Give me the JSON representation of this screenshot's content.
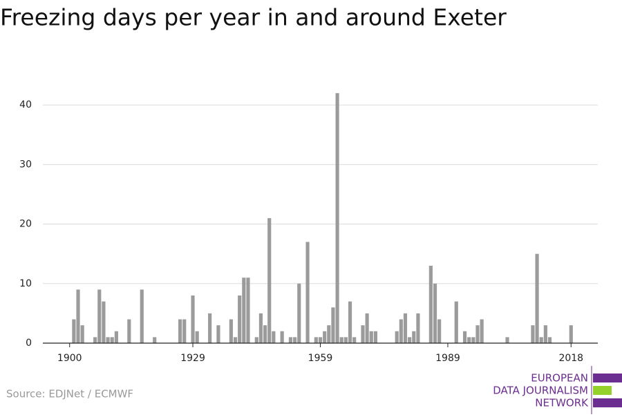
{
  "chart_data": {
    "type": "bar",
    "title": "Freezing days per year in and around Exeter",
    "source": "Source: EDJNet / ECMWF",
    "logo": [
      "EUROPEAN",
      "DATA JOURNALISM",
      "NETWORK"
    ],
    "color": "#9b9b9b",
    "x": [
      1900,
      1901,
      1902,
      1903,
      1904,
      1905,
      1906,
      1907,
      1908,
      1909,
      1910,
      1911,
      1912,
      1913,
      1914,
      1915,
      1916,
      1917,
      1918,
      1919,
      1920,
      1921,
      1922,
      1923,
      1924,
      1925,
      1926,
      1927,
      1928,
      1929,
      1930,
      1931,
      1932,
      1933,
      1934,
      1935,
      1936,
      1937,
      1938,
      1939,
      1940,
      1941,
      1942,
      1943,
      1944,
      1945,
      1946,
      1947,
      1948,
      1949,
      1950,
      1951,
      1952,
      1953,
      1954,
      1955,
      1956,
      1957,
      1958,
      1959,
      1960,
      1961,
      1962,
      1963,
      1964,
      1965,
      1966,
      1967,
      1968,
      1969,
      1970,
      1971,
      1972,
      1973,
      1974,
      1975,
      1976,
      1977,
      1978,
      1979,
      1980,
      1981,
      1982,
      1983,
      1984,
      1985,
      1986,
      1987,
      1988,
      1989,
      1990,
      1991,
      1992,
      1993,
      1994,
      1995,
      1996,
      1997,
      1998,
      1999,
      2000,
      2001,
      2002,
      2003,
      2004,
      2005,
      2006,
      2007,
      2008,
      2009,
      2010,
      2011,
      2012,
      2013,
      2014,
      2015,
      2016,
      2017,
      2018
    ],
    "values": [
      0,
      4,
      9,
      3,
      0,
      0,
      1,
      9,
      7,
      1,
      1,
      2,
      0,
      0,
      4,
      0,
      0,
      9,
      0,
      0,
      1,
      0,
      0,
      0,
      0,
      0,
      4,
      4,
      0,
      8,
      2,
      0,
      0,
      5,
      0,
      3,
      0,
      0,
      4,
      1,
      8,
      11,
      11,
      0,
      1,
      5,
      3,
      21,
      2,
      0,
      2,
      0,
      1,
      1,
      10,
      0,
      17,
      0,
      1,
      1,
      2,
      3,
      6,
      42,
      1,
      1,
      7,
      1,
      0,
      3,
      5,
      2,
      2,
      0,
      0,
      0,
      0,
      2,
      4,
      5,
      1,
      2,
      5,
      0,
      0,
      13,
      10,
      4,
      0,
      0,
      0,
      7,
      0,
      2,
      1,
      1,
      3,
      4,
      0,
      0,
      0,
      0,
      0,
      1,
      0,
      0,
      0,
      0,
      0,
      3,
      15,
      1,
      3,
      1,
      0,
      0,
      0,
      0,
      3
    ],
    "xlim": [
      1893.7,
      2024.3
    ],
    "xticks": [
      1900,
      1929,
      1959,
      1989,
      2018
    ],
    "ylim": [
      0,
      45
    ],
    "yticks": [
      0,
      10,
      20,
      30,
      40
    ],
    "grid": true
  }
}
